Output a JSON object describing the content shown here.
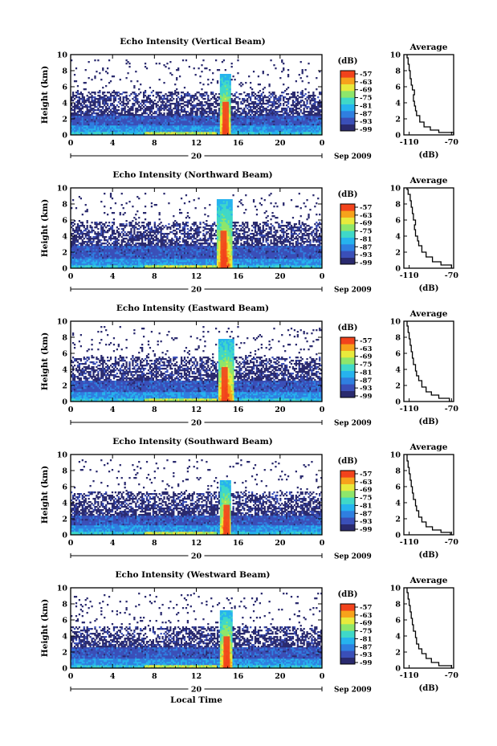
{
  "chart_data": [
    {
      "type": "heatmap",
      "title": "Echo Intensity (Vertical Beam)",
      "ylabel": "Height (km)",
      "xticks": [
        "0",
        "4",
        "8",
        "12",
        "16",
        "20",
        "0"
      ],
      "yticks": [
        "0",
        "2",
        "4",
        "6",
        "8",
        "10"
      ],
      "ylim": [
        0,
        10
      ],
      "xlim": [
        0,
        24
      ],
      "date_label": "20",
      "month_label": "Sep 2009",
      "colorbar": {
        "unit": "(dB)",
        "ticks": [
          "-57",
          "-63",
          "-69",
          "-75",
          "-81",
          "-87",
          "-93",
          "-99"
        ]
      },
      "features": {
        "surface_layer_top_km": 2.5,
        "broken_layer_top_km": 5.5,
        "rain_start_h": 14.2,
        "rain_end_h": 15.3,
        "rain_top_km": 7.5
      },
      "profile": {
        "title": "Average",
        "xlabel": "(dB)",
        "xticks": [
          "-110",
          "-70"
        ],
        "xlim": [
          -115,
          -68
        ],
        "points": [
          [
            -68,
            0
          ],
          [
            -82,
            0.3
          ],
          [
            -90,
            0.6
          ],
          [
            -96,
            1
          ],
          [
            -100,
            1.6
          ],
          [
            -103,
            2.4
          ],
          [
            -104,
            3
          ],
          [
            -105,
            3.6
          ],
          [
            -106,
            4.2
          ],
          [
            -105,
            5
          ],
          [
            -107,
            5.6
          ],
          [
            -108,
            6.2
          ],
          [
            -109,
            7
          ],
          [
            -110,
            8
          ],
          [
            -111,
            8.8
          ],
          [
            -112,
            9.6
          ]
        ]
      }
    },
    {
      "type": "heatmap",
      "title": "Echo Intensity (Northward Beam)",
      "ylabel": "Height (km)",
      "xticks": [
        "0",
        "4",
        "8",
        "12",
        "16",
        "20",
        "0"
      ],
      "yticks": [
        "0",
        "2",
        "4",
        "6",
        "8",
        "10"
      ],
      "ylim": [
        0,
        10
      ],
      "xlim": [
        0,
        24
      ],
      "date_label": "20",
      "month_label": "Sep 2009",
      "colorbar": {
        "unit": "(dB)",
        "ticks": [
          "-57",
          "-63",
          "-69",
          "-75",
          "-81",
          "-87",
          "-93",
          "-99"
        ]
      },
      "features": {
        "surface_layer_top_km": 2.8,
        "broken_layer_top_km": 5.8,
        "rain_start_h": 14.0,
        "rain_end_h": 15.4,
        "rain_top_km": 8.5
      },
      "profile": {
        "title": "Average",
        "xlabel": "(dB)",
        "xticks": [
          "-110",
          "-70"
        ],
        "xlim": [
          -115,
          -68
        ],
        "points": [
          [
            -70,
            0
          ],
          [
            -80,
            0.4
          ],
          [
            -88,
            0.8
          ],
          [
            -94,
            1.4
          ],
          [
            -98,
            2
          ],
          [
            -101,
            2.8
          ],
          [
            -102,
            3.4
          ],
          [
            -104,
            4
          ],
          [
            -105,
            4.8
          ],
          [
            -104,
            5.4
          ],
          [
            -106,
            6
          ],
          [
            -107,
            6.8
          ],
          [
            -108,
            7.6
          ],
          [
            -109,
            8.4
          ],
          [
            -111,
            9.2
          ],
          [
            -112,
            9.8
          ]
        ]
      }
    },
    {
      "type": "heatmap",
      "title": "Echo Intensity (Eastward Beam)",
      "ylabel": "Height (km)",
      "xticks": [
        "0",
        "4",
        "8",
        "12",
        "16",
        "20",
        "0"
      ],
      "yticks": [
        "0",
        "2",
        "4",
        "6",
        "8",
        "10"
      ],
      "ylim": [
        0,
        10
      ],
      "xlim": [
        0,
        24
      ],
      "date_label": "20",
      "month_label": "Sep 2009",
      "colorbar": {
        "unit": "(dB)",
        "ticks": [
          "-57",
          "-63",
          "-69",
          "-75",
          "-81",
          "-87",
          "-93",
          "-99"
        ]
      },
      "features": {
        "surface_layer_top_km": 2.6,
        "broken_layer_top_km": 5.6,
        "rain_start_h": 14.1,
        "rain_end_h": 15.6,
        "rain_top_km": 7.8
      },
      "profile": {
        "title": "Average",
        "xlabel": "(dB)",
        "xticks": [
          "-110",
          "-70"
        ],
        "xlim": [
          -115,
          -68
        ],
        "points": [
          [
            -72,
            0
          ],
          [
            -82,
            0.4
          ],
          [
            -89,
            0.8
          ],
          [
            -94,
            1.2
          ],
          [
            -98,
            1.8
          ],
          [
            -101,
            2.6
          ],
          [
            -103,
            3.2
          ],
          [
            -104,
            3.8
          ],
          [
            -106,
            4.6
          ],
          [
            -107,
            5.4
          ],
          [
            -108,
            6.2
          ],
          [
            -109,
            7
          ],
          [
            -110,
            7.8
          ],
          [
            -111,
            8.6
          ],
          [
            -112,
            9.4
          ]
        ]
      }
    },
    {
      "type": "heatmap",
      "title": "Echo Intensity (Southward Beam)",
      "ylabel": "Height (km)",
      "xticks": [
        "0",
        "4",
        "8",
        "12",
        "16",
        "20",
        "0"
      ],
      "yticks": [
        "0",
        "2",
        "4",
        "6",
        "8",
        "10"
      ],
      "ylim": [
        0,
        10
      ],
      "xlim": [
        0,
        24
      ],
      "date_label": "20",
      "month_label": "Sep 2009",
      "colorbar": {
        "unit": "(dB)",
        "ticks": [
          "-57",
          "-63",
          "-69",
          "-75",
          "-81",
          "-87",
          "-93",
          "-99"
        ]
      },
      "features": {
        "surface_layer_top_km": 2.5,
        "broken_layer_top_km": 5.4,
        "rain_start_h": 14.3,
        "rain_end_h": 15.3,
        "rain_top_km": 6.8
      },
      "profile": {
        "title": "Average",
        "xlabel": "(dB)",
        "xticks": [
          "-110",
          "-70"
        ],
        "xlim": [
          -115,
          -68
        ],
        "points": [
          [
            -71,
            0
          ],
          [
            -80,
            0.3
          ],
          [
            -88,
            0.6
          ],
          [
            -94,
            1
          ],
          [
            -98,
            1.6
          ],
          [
            -101,
            2.2
          ],
          [
            -103,
            3
          ],
          [
            -104,
            3.6
          ],
          [
            -106,
            4.4
          ],
          [
            -107,
            5.2
          ],
          [
            -108,
            6
          ],
          [
            -109,
            6.8
          ],
          [
            -110,
            7.6
          ],
          [
            -111,
            8.4
          ],
          [
            -112,
            9.2
          ]
        ]
      }
    },
    {
      "type": "heatmap",
      "title": "Echo Intensity (Westward Beam)",
      "ylabel": "Height (km)",
      "xlabel": "Local Time",
      "xticks": [
        "0",
        "4",
        "8",
        "12",
        "16",
        "20",
        "0"
      ],
      "yticks": [
        "0",
        "2",
        "4",
        "6",
        "8",
        "10"
      ],
      "ylim": [
        0,
        10
      ],
      "xlim": [
        0,
        24
      ],
      "date_label": "20",
      "month_label": "Sep 2009",
      "colorbar": {
        "unit": "(dB)",
        "ticks": [
          "-57",
          "-63",
          "-69",
          "-75",
          "-81",
          "-87",
          "-93",
          "-99"
        ]
      },
      "features": {
        "surface_layer_top_km": 2.6,
        "broken_layer_top_km": 5.2,
        "rain_start_h": 14.3,
        "rain_end_h": 15.5,
        "rain_top_km": 7.2
      },
      "profile": {
        "title": "Average",
        "xlabel": "(dB)",
        "xticks": [
          "-110",
          "-70"
        ],
        "xlim": [
          -115,
          -68
        ],
        "points": [
          [
            -70,
            0
          ],
          [
            -82,
            0.3
          ],
          [
            -89,
            0.7
          ],
          [
            -94,
            1.2
          ],
          [
            -98,
            1.8
          ],
          [
            -101,
            2.4
          ],
          [
            -103,
            3
          ],
          [
            -104,
            3.8
          ],
          [
            -106,
            4.6
          ],
          [
            -107,
            5.4
          ],
          [
            -108,
            6.2
          ],
          [
            -109,
            7
          ],
          [
            -110,
            7.8
          ],
          [
            -111,
            8.6
          ],
          [
            -112,
            9.4
          ]
        ]
      }
    }
  ],
  "colors": {
    "scale": [
      "#2a2a6e",
      "#3a4fb8",
      "#2f7fe0",
      "#26b3ee",
      "#3fd8c8",
      "#8ee66a",
      "#e8ea3c",
      "#f7a21b",
      "#f2431c"
    ],
    "background": "#ffffff",
    "axis": "#000000"
  }
}
